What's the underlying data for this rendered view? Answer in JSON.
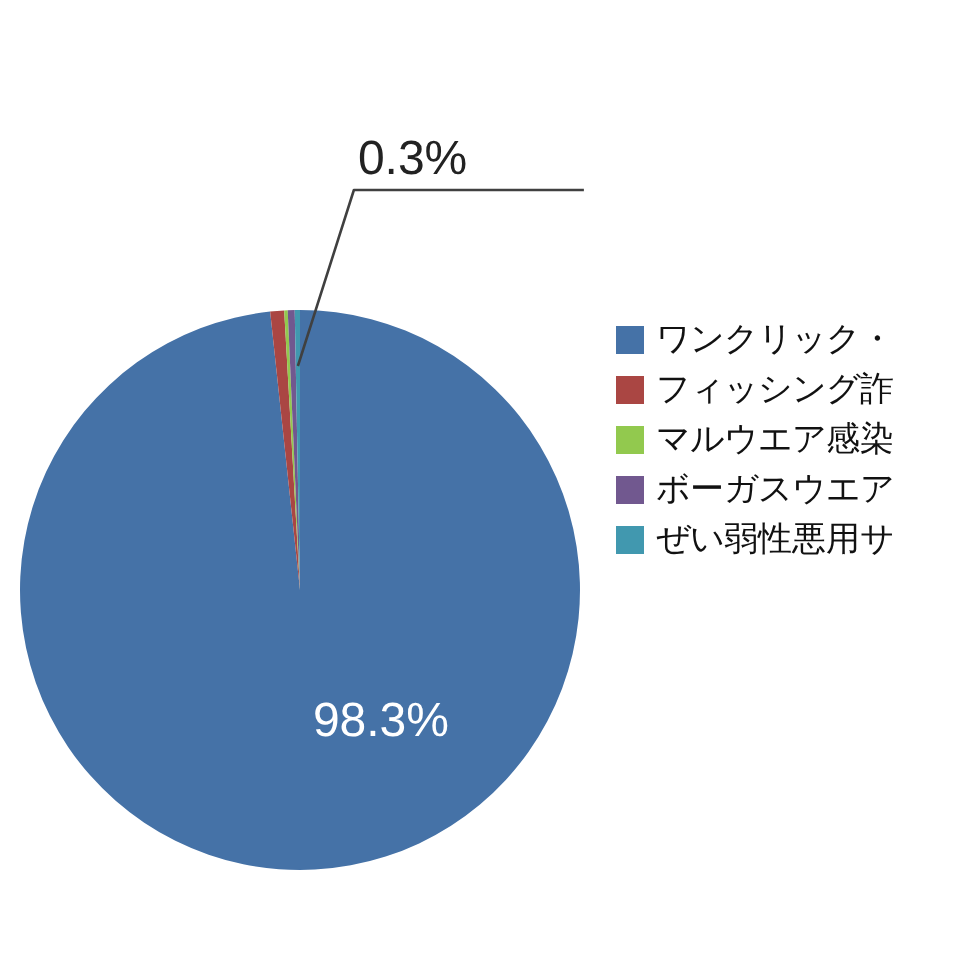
{
  "chart_data": {
    "type": "pie",
    "categories": [
      "ワンクリック・",
      "フィッシング詐",
      "マルウエア感染",
      "ボーガスウエア",
      "ぜい弱性悪用サ"
    ],
    "values": [
      98.3,
      0.8,
      0.2,
      0.4,
      0.3
    ],
    "colors": [
      "#4572a7",
      "#aa4643",
      "#92c94e",
      "#71588f",
      "#4198af"
    ],
    "value_labels": [
      "98.3%",
      null,
      null,
      null,
      "0.3%"
    ],
    "legend": "right"
  }
}
